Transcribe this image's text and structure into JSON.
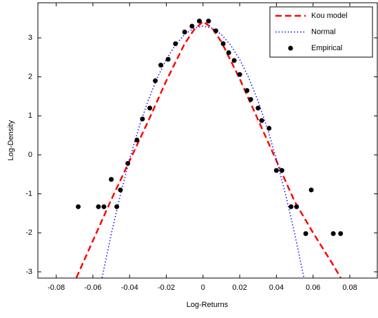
{
  "chart_data": {
    "type": "line",
    "x_label": "Log-Returns",
    "y_label": "Log-Density",
    "xlim": [
      -0.09,
      0.095
    ],
    "ylim": [
      -3.16,
      3.9
    ],
    "xticks": [
      -0.08,
      -0.06,
      -0.04,
      -0.02,
      0,
      0.02,
      0.04,
      0.06,
      0.08
    ],
    "yticks": [
      -3,
      -2,
      -1,
      0,
      1,
      2,
      3
    ],
    "legend": "top-right",
    "series": [
      {
        "name": "Kou model",
        "type": "line",
        "color": "#ff0000",
        "style": "dashed",
        "x": [
          -0.069,
          -0.06,
          -0.05,
          -0.04,
          -0.03,
          -0.02,
          -0.01,
          -0.005,
          0,
          0.005,
          0.01,
          0.02,
          0.03,
          0.04,
          0.05,
          0.06,
          0.07,
          0.075
        ],
        "y": [
          -3.15,
          -2.2,
          -1.15,
          -0.15,
          0.85,
          1.9,
          2.85,
          3.2,
          3.42,
          3.25,
          2.9,
          1.95,
          0.9,
          -0.15,
          -1.2,
          -2.0,
          -2.75,
          -3.15
        ]
      },
      {
        "name": "Normal",
        "type": "line",
        "color": "#0000ff",
        "style": "dotted",
        "x": [
          -0.055,
          -0.05,
          -0.045,
          -0.04,
          -0.035,
          -0.03,
          -0.025,
          -0.02,
          -0.015,
          -0.01,
          -0.005,
          0,
          0.005,
          0.01,
          0.015,
          0.02,
          0.025,
          0.03,
          0.035,
          0.04,
          0.045,
          0.05,
          0.055
        ],
        "y": [
          -3.149,
          -2.03,
          -1.017,
          -0.111,
          0.688,
          1.381,
          1.968,
          2.447,
          2.82,
          3.087,
          3.247,
          3.3,
          3.247,
          3.087,
          2.82,
          2.447,
          1.968,
          1.381,
          0.688,
          -0.111,
          -1.017,
          -2.03,
          -3.149
        ]
      },
      {
        "name": "Empirical",
        "type": "scatter",
        "color": "#000000",
        "x": [
          -0.068,
          -0.057,
          -0.054,
          -0.05,
          -0.047,
          -0.045,
          -0.041,
          -0.036,
          -0.033,
          -0.029,
          -0.026,
          -0.023,
          -0.019,
          -0.015,
          -0.01,
          -0.006,
          -0.002,
          0.003,
          0.007,
          0.011,
          0.014,
          0.017,
          0.02,
          0.024,
          0.026,
          0.03,
          0.032,
          0.036,
          0.04,
          0.043,
          0.048,
          0.051,
          0.056,
          0.059,
          0.071,
          0.075
        ],
        "y": [
          -1.33,
          -1.33,
          -1.33,
          -0.63,
          -1.33,
          -0.9,
          -0.22,
          0.38,
          0.92,
          1.2,
          1.9,
          2.3,
          2.45,
          2.85,
          3.15,
          3.3,
          3.43,
          3.43,
          3.18,
          2.85,
          2.62,
          2.42,
          2.06,
          1.65,
          1.42,
          1.2,
          0.88,
          0.68,
          -0.4,
          -0.4,
          -1.33,
          -1.33,
          -2.02,
          -0.9,
          -2.02,
          -2.02
        ]
      }
    ]
  }
}
